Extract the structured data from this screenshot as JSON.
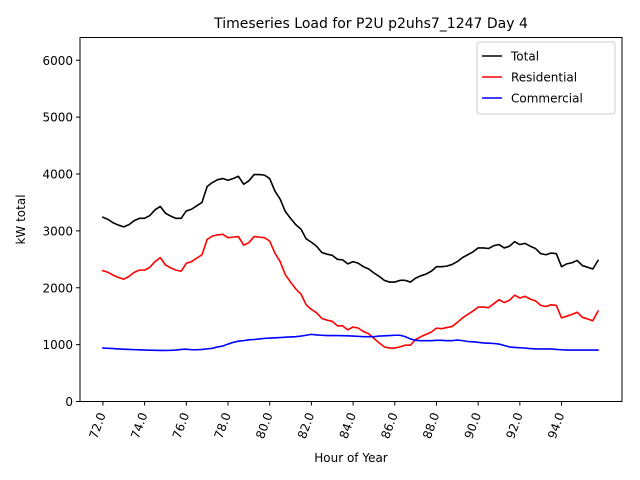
{
  "chart_data": {
    "type": "line",
    "title": "Timeseries Load for P2U p2uhs7_1247  Day 4",
    "xlabel": "Hour of Year",
    "ylabel": "kW total",
    "xlim": [
      70.9,
      96.9
    ],
    "ylim": [
      0,
      6400
    ],
    "xticks": [
      72,
      74,
      76,
      78,
      80,
      82,
      84,
      86,
      88,
      90,
      92,
      94
    ],
    "xtick_labels": [
      "72.0",
      "74.0",
      "76.0",
      "78.0",
      "80.0",
      "82.0",
      "84.0",
      "86.0",
      "88.0",
      "90.0",
      "92.0",
      "94.0"
    ],
    "yticks": [
      0,
      1000,
      2000,
      3000,
      4000,
      5000,
      6000
    ],
    "ytick_labels": [
      "0",
      "1000",
      "2000",
      "3000",
      "4000",
      "5000",
      "6000"
    ],
    "legend_position": "top-right",
    "x": [
      72.0,
      72.25,
      72.5,
      72.75,
      73.0,
      73.25,
      73.5,
      73.75,
      74.0,
      74.25,
      74.5,
      74.75,
      75.0,
      75.25,
      75.5,
      75.75,
      76.0,
      76.25,
      76.5,
      76.75,
      77.0,
      77.25,
      77.5,
      77.75,
      78.0,
      78.25,
      78.5,
      78.75,
      79.0,
      79.25,
      79.5,
      79.75,
      80.0,
      80.25,
      80.5,
      80.75,
      81.0,
      81.25,
      81.5,
      81.75,
      82.0,
      82.25,
      82.5,
      82.75,
      83.0,
      83.25,
      83.5,
      83.75,
      84.0,
      84.25,
      84.5,
      84.75,
      85.0,
      85.25,
      85.5,
      85.75,
      86.0,
      86.25,
      86.5,
      86.75,
      87.0,
      87.25,
      87.5,
      87.75,
      88.0,
      88.25,
      88.5,
      88.75,
      89.0,
      89.25,
      89.5,
      89.75,
      90.0,
      90.25,
      90.5,
      90.75,
      91.0,
      91.25,
      91.5,
      91.75,
      92.0,
      92.25,
      92.5,
      92.75,
      93.0,
      93.25,
      93.5,
      93.75,
      94.0,
      94.25,
      94.5,
      94.75,
      95.0,
      95.25,
      95.5,
      95.75
    ],
    "series": [
      {
        "name": "Total",
        "color": "#000000",
        "values": [
          3240,
          3200,
          3140,
          3100,
          3070,
          3110,
          3180,
          3220,
          3220,
          3270,
          3370,
          3430,
          3310,
          3260,
          3220,
          3220,
          3350,
          3380,
          3440,
          3500,
          3780,
          3850,
          3900,
          3920,
          3890,
          3920,
          3960,
          3820,
          3880,
          3990,
          3990,
          3980,
          3920,
          3700,
          3560,
          3340,
          3220,
          3110,
          3030,
          2860,
          2800,
          2730,
          2620,
          2590,
          2570,
          2500,
          2490,
          2420,
          2460,
          2430,
          2370,
          2330,
          2260,
          2200,
          2130,
          2100,
          2100,
          2130,
          2130,
          2100,
          2170,
          2210,
          2240,
          2290,
          2370,
          2370,
          2380,
          2410,
          2460,
          2530,
          2580,
          2630,
          2700,
          2700,
          2690,
          2740,
          2760,
          2700,
          2730,
          2810,
          2760,
          2780,
          2730,
          2690,
          2600,
          2580,
          2610,
          2600,
          2370,
          2420,
          2440,
          2480,
          2390,
          2360,
          2330,
          2480
        ]
      },
      {
        "name": "Residential",
        "color": "#ff0000",
        "values": [
          2300,
          2270,
          2220,
          2180,
          2150,
          2200,
          2270,
          2310,
          2310,
          2360,
          2460,
          2530,
          2400,
          2350,
          2310,
          2290,
          2430,
          2460,
          2520,
          2580,
          2850,
          2910,
          2930,
          2940,
          2880,
          2890,
          2900,
          2750,
          2790,
          2900,
          2890,
          2880,
          2820,
          2610,
          2460,
          2230,
          2100,
          1980,
          1890,
          1700,
          1620,
          1560,
          1460,
          1430,
          1410,
          1330,
          1330,
          1260,
          1310,
          1290,
          1230,
          1190,
          1110,
          1030,
          960,
          940,
          940,
          960,
          990,
          990,
          1090,
          1140,
          1180,
          1220,
          1290,
          1280,
          1300,
          1320,
          1390,
          1470,
          1530,
          1590,
          1660,
          1660,
          1650,
          1720,
          1790,
          1740,
          1780,
          1870,
          1820,
          1850,
          1800,
          1770,
          1690,
          1670,
          1700,
          1690,
          1470,
          1500,
          1530,
          1570,
          1480,
          1450,
          1420,
          1590
        ]
      },
      {
        "name": "Commercial",
        "color": "#0000ff",
        "values": [
          940,
          935,
          930,
          925,
          920,
          915,
          912,
          908,
          905,
          902,
          900,
          898,
          898,
          900,
          905,
          915,
          920,
          910,
          910,
          915,
          925,
          935,
          960,
          975,
          1010,
          1040,
          1060,
          1070,
          1085,
          1090,
          1100,
          1110,
          1115,
          1120,
          1125,
          1130,
          1135,
          1140,
          1150,
          1165,
          1180,
          1170,
          1165,
          1160,
          1160,
          1160,
          1158,
          1155,
          1150,
          1145,
          1140,
          1140,
          1140,
          1150,
          1155,
          1160,
          1165,
          1165,
          1140,
          1100,
          1075,
          1070,
          1070,
          1070,
          1075,
          1075,
          1070,
          1070,
          1080,
          1070,
          1055,
          1050,
          1040,
          1030,
          1025,
          1020,
          1010,
          985,
          960,
          950,
          945,
          940,
          930,
          925,
          925,
          925,
          925,
          915,
          910,
          905,
          905,
          905,
          905,
          905,
          905,
          905
        ]
      }
    ]
  }
}
